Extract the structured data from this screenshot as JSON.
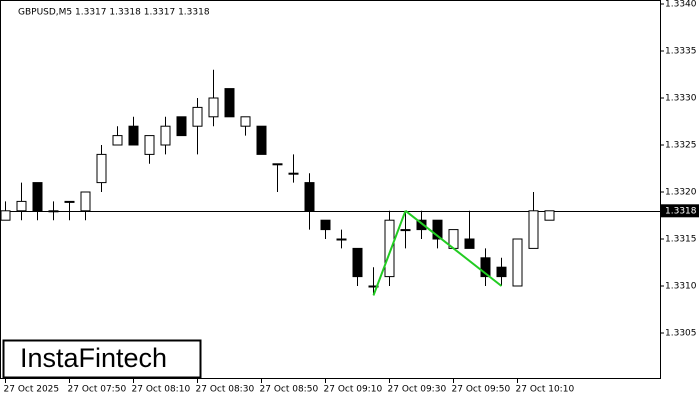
{
  "chart_data": {
    "type": "candlestick",
    "title": "GBPUSD,M5  1.3317 1.3318 1.3317 1.3318",
    "watermark": "InstaFintech",
    "categories": [
      "27 Oct 2025",
      null,
      null,
      null,
      "27 Oct 07:50",
      null,
      null,
      null,
      "27 Oct 08:10",
      null,
      null,
      null,
      "27 Oct 08:30",
      null,
      null,
      null,
      "27 Oct 08:50",
      null,
      null,
      null,
      "27 Oct 09:10",
      null,
      null,
      null,
      "27 Oct 09:30",
      null,
      null,
      null,
      "27 Oct 09:50",
      null,
      null,
      null,
      "27 Oct 10:10",
      null,
      null
    ],
    "open": [
      1.3317,
      1.3318,
      1.3321,
      1.3318,
      1.3319,
      1.3318,
      1.3321,
      1.3325,
      1.3327,
      1.3324,
      1.3325,
      1.3328,
      1.3327,
      1.3328,
      1.3331,
      1.3327,
      1.3327,
      1.3323,
      1.3322,
      1.3321,
      1.3317,
      1.3315,
      1.3314,
      1.331,
      1.3311,
      1.3316,
      1.3317,
      1.3317,
      1.3314,
      1.3315,
      1.3313,
      1.3312,
      1.331,
      1.3314,
      1.3317
    ],
    "high": [
      1.3319,
      1.3321,
      1.3321,
      1.3319,
      1.3319,
      1.332,
      1.3325,
      1.3327,
      1.3328,
      1.3326,
      1.3328,
      1.3328,
      1.333,
      1.3333,
      1.3331,
      1.3328,
      1.3327,
      1.3323,
      1.3324,
      1.3322,
      1.3317,
      1.3316,
      1.3314,
      1.3312,
      1.3318,
      1.3318,
      1.3318,
      1.3317,
      1.3316,
      1.3318,
      1.3314,
      1.3313,
      1.3315,
      1.332,
      1.3318
    ],
    "low": [
      1.3317,
      1.3317,
      1.3317,
      1.3317,
      1.3317,
      1.3317,
      1.332,
      1.3325,
      1.3325,
      1.3323,
      1.3324,
      1.3326,
      1.3324,
      1.3327,
      1.3328,
      1.3326,
      1.3324,
      1.332,
      1.3321,
      1.3316,
      1.3315,
      1.3314,
      1.331,
      1.3309,
      1.331,
      1.3314,
      1.3315,
      1.3314,
      1.3314,
      1.3314,
      1.331,
      1.331,
      1.331,
      1.3314,
      1.3317
    ],
    "close": [
      1.3318,
      1.3319,
      1.3318,
      1.3318,
      1.3319,
      1.332,
      1.3324,
      1.3326,
      1.3325,
      1.3326,
      1.3327,
      1.3326,
      1.3329,
      1.333,
      1.3328,
      1.3328,
      1.3324,
      1.3323,
      1.3322,
      1.3318,
      1.3316,
      1.3315,
      1.3311,
      1.331,
      1.3317,
      1.3316,
      1.3316,
      1.3315,
      1.3316,
      1.3314,
      1.3311,
      1.3311,
      1.3315,
      1.3318,
      1.3318
    ],
    "up_color": "#ffffff",
    "down_color": "#000000",
    "pattern": {
      "color": "#22cc22",
      "values": [
        null,
        null,
        null,
        null,
        null,
        null,
        null,
        null,
        null,
        null,
        null,
        null,
        null,
        null,
        null,
        null,
        null,
        null,
        null,
        null,
        null,
        null,
        null,
        1.3309,
        null,
        1.3318,
        null,
        null,
        null,
        null,
        null,
        1.331,
        null,
        null,
        null
      ]
    },
    "last_price": 1.3318,
    "ylim": [
      1.33,
      1.334
    ],
    "yticks": [
      1.3305,
      {
        "value": 1.331,
        "label": "1.3310"
      },
      1.3315,
      {
        "value": 1.332,
        "label": "1.3320"
      },
      1.3325,
      {
        "value": 1.333,
        "label": "1.3330"
      },
      1.3335,
      {
        "value": 1.334,
        "label": "1.3340"
      }
    ]
  }
}
